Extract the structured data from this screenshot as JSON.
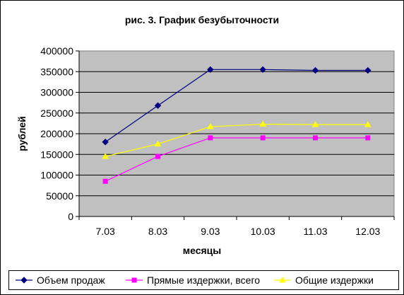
{
  "chart_data": {
    "type": "line",
    "title": "рис. 3. График безубыточности",
    "xlabel": "месяцы",
    "ylabel": "рублей",
    "categories": [
      "7.03",
      "8.03",
      "9.03",
      "10.03",
      "11.03",
      "12.03"
    ],
    "ylim": [
      0,
      400000
    ],
    "yticks": [
      "0",
      "50000",
      "100000",
      "150000",
      "200000",
      "250000",
      "300000",
      "350000",
      "400000"
    ],
    "grid": true,
    "legend_position": "bottom",
    "plot_background": "#c0c0c0",
    "series": [
      {
        "name": "Объем продаж",
        "values": [
          180000,
          268000,
          355000,
          355000,
          353000,
          353000
        ],
        "color": "#000080",
        "marker": "diamond"
      },
      {
        "name": "Прямые издержки, всего",
        "values": [
          85000,
          145000,
          190000,
          190000,
          190000,
          190000
        ],
        "color": "#ff00ff",
        "marker": "square"
      },
      {
        "name": "Общие издержки",
        "values": [
          145000,
          175000,
          217000,
          223000,
          222000,
          222000
        ],
        "color": "#ffff00",
        "marker": "triangle"
      }
    ]
  }
}
